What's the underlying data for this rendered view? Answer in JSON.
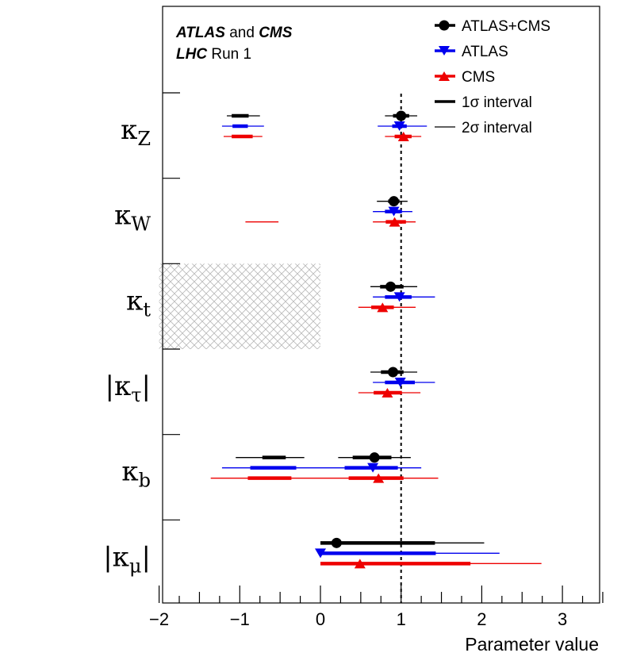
{
  "chart_data": {
    "type": "forest",
    "experiment_label": {
      "part1": "ATLAS",
      "part2": " and ",
      "part3": "CMS",
      "line2_bold": "LHC",
      "line2_rest": " Run 1"
    },
    "xlabel": "Parameter value",
    "xlim": [
      -2,
      3.5
    ],
    "x_ticks": [
      -2,
      -1,
      0,
      1,
      2,
      3
    ],
    "x_tick_labels": [
      "−2",
      "−1",
      "0",
      "1",
      "2",
      "3"
    ],
    "reference_line": 1,
    "legend": [
      {
        "name": "ATLAS+CMS",
        "color": "#000000",
        "marker": "circle"
      },
      {
        "name": "ATLAS",
        "color": "#0000ee",
        "marker": "triangle-down"
      },
      {
        "name": "CMS",
        "color": "#ee0000",
        "marker": "triangle-up"
      },
      {
        "name": "1σ interval",
        "color": "#000000",
        "marker": "thick-line"
      },
      {
        "name": "2σ interval",
        "color": "#000000",
        "marker": "thin-line"
      }
    ],
    "excluded_region": {
      "parameter": "kappa_t",
      "x_from": -2,
      "x_to": 0
    },
    "parameters": [
      {
        "id": "kappa_Z",
        "symbol": "κ",
        "sub": "Z",
        "abs": false,
        "series": [
          {
            "name": "ATLAS+CMS",
            "central": 1.0,
            "one_sigma": [
              0.9,
              1.1
            ],
            "two_sigma": [
              0.8,
              1.2
            ],
            "alt": {
              "central": -1.05,
              "one_sigma": [
                -1.1,
                -0.89
              ],
              "two_sigma": [
                -1.16,
                -0.75
              ]
            }
          },
          {
            "name": "ATLAS",
            "central": 0.98,
            "one_sigma": [
              0.89,
              1.07
            ],
            "two_sigma": [
              0.71,
              1.32
            ],
            "alt": {
              "central": -1.0,
              "one_sigma": [
                -1.09,
                -0.9
              ],
              "two_sigma": [
                -1.22,
                -0.7
              ]
            }
          },
          {
            "name": "CMS",
            "central": 1.03,
            "one_sigma": [
              0.92,
              1.13
            ],
            "two_sigma": [
              0.8,
              1.25
            ],
            "alt": {
              "central": -0.98,
              "one_sigma": [
                -1.1,
                -0.84
              ],
              "two_sigma": [
                -1.2,
                -0.72
              ]
            }
          }
        ]
      },
      {
        "id": "kappa_W",
        "symbol": "κ",
        "sub": "W",
        "abs": false,
        "series": [
          {
            "name": "ATLAS+CMS",
            "central": 0.91,
            "one_sigma": [
              0.84,
              0.98
            ],
            "two_sigma": [
              0.7,
              1.08
            ]
          },
          {
            "name": "ATLAS",
            "central": 0.91,
            "one_sigma": [
              0.8,
              1.01
            ],
            "two_sigma": [
              0.65,
              1.14
            ]
          },
          {
            "name": "CMS",
            "central": 0.92,
            "one_sigma": [
              0.81,
              1.06
            ],
            "two_sigma": [
              0.65,
              1.18
            ],
            "alt_thin": [
              -0.93,
              -0.52
            ]
          }
        ]
      },
      {
        "id": "kappa_t",
        "symbol": "κ",
        "sub": "t",
        "abs": false,
        "series": [
          {
            "name": "ATLAS+CMS",
            "central": 0.87,
            "one_sigma": [
              0.74,
              1.03
            ],
            "two_sigma": [
              0.62,
              1.2
            ]
          },
          {
            "name": "ATLAS",
            "central": 0.98,
            "one_sigma": [
              0.8,
              1.13
            ],
            "two_sigma": [
              0.65,
              1.42
            ]
          },
          {
            "name": "CMS",
            "central": 0.77,
            "one_sigma": [
              0.63,
              0.91
            ],
            "two_sigma": [
              0.47,
              1.18
            ]
          }
        ]
      },
      {
        "id": "kappa_tau",
        "symbol": "κ",
        "sub": "τ",
        "abs": true,
        "series": [
          {
            "name": "ATLAS+CMS",
            "central": 0.9,
            "one_sigma": [
              0.75,
              1.03
            ],
            "two_sigma": [
              0.62,
              1.2
            ]
          },
          {
            "name": "ATLAS",
            "central": 0.99,
            "one_sigma": [
              0.8,
              1.17
            ],
            "two_sigma": [
              0.65,
              1.42
            ]
          },
          {
            "name": "CMS",
            "central": 0.83,
            "one_sigma": [
              0.66,
              1.01
            ],
            "two_sigma": [
              0.47,
              1.24
            ]
          }
        ]
      },
      {
        "id": "kappa_b",
        "symbol": "κ",
        "sub": "b",
        "abs": false,
        "series": [
          {
            "name": "ATLAS+CMS",
            "central": 0.67,
            "one_sigma": [
              0.4,
              0.88
            ],
            "two_sigma": [
              0.22,
              1.12
            ],
            "alt": {
              "central": -0.6,
              "one_sigma": [
                -0.72,
                -0.43
              ],
              "two_sigma": [
                -1.05,
                -0.2
              ]
            }
          },
          {
            "name": "ATLAS",
            "central": 0.65,
            "one_sigma": [
              0.3,
              0.96
            ],
            "two_sigma": [
              0.0,
              1.25
            ],
            "alt": {
              "central": -0.6,
              "one_sigma": [
                -0.87,
                -0.3
              ],
              "two_sigma": [
                -1.22,
                0.0
              ]
            }
          },
          {
            "name": "CMS",
            "central": 0.72,
            "one_sigma": [
              0.35,
              1.03
            ],
            "two_sigma": [
              0.0,
              1.46
            ],
            "alt": {
              "central": -0.63,
              "one_sigma": [
                -0.9,
                -0.36
              ],
              "two_sigma": [
                -1.36,
                0.0
              ]
            }
          }
        ]
      },
      {
        "id": "kappa_mu",
        "symbol": "κ",
        "sub": "μ",
        "abs": true,
        "series": [
          {
            "name": "ATLAS+CMS",
            "central": 0.2,
            "one_sigma": [
              0.0,
              1.42
            ],
            "two_sigma": [
              0.0,
              2.03
            ]
          },
          {
            "name": "ATLAS",
            "central": 0.0,
            "one_sigma": [
              0.0,
              1.43
            ],
            "two_sigma": [
              0.0,
              2.22
            ]
          },
          {
            "name": "CMS",
            "central": 0.49,
            "one_sigma": [
              0.0,
              1.86
            ],
            "two_sigma": [
              0.0,
              2.74
            ]
          }
        ]
      }
    ]
  }
}
